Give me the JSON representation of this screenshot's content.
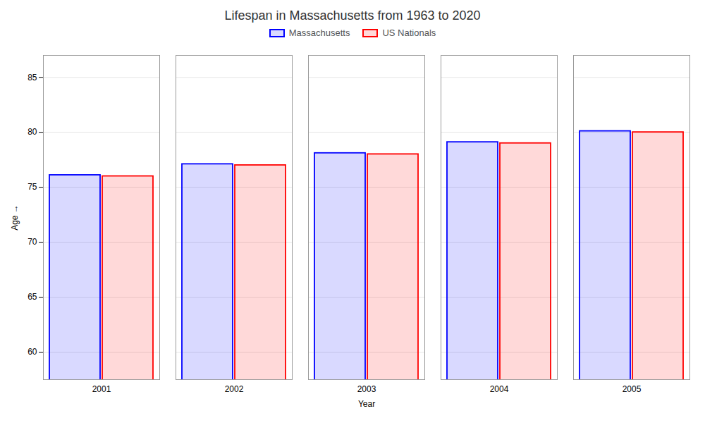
{
  "chart_data": {
    "type": "bar",
    "title": "Lifespan in Massachusetts from 1963 to 2020",
    "xlabel": "Year",
    "ylabel": "Age",
    "categories": [
      "2001",
      "2002",
      "2003",
      "2004",
      "2005"
    ],
    "series": [
      {
        "name": "Massachusetts",
        "color": "#0000ff",
        "values": [
          76.1,
          77.1,
          78.1,
          79.1,
          80.1
        ]
      },
      {
        "name": "US Nationals",
        "color": "#ff0000",
        "values": [
          76.0,
          77.0,
          78.0,
          79.0,
          80.0
        ]
      }
    ],
    "ylim": [
      57.5,
      87
    ],
    "yticks": [
      60,
      65,
      70,
      75,
      80,
      85
    ],
    "grid": true,
    "legend": "top"
  }
}
